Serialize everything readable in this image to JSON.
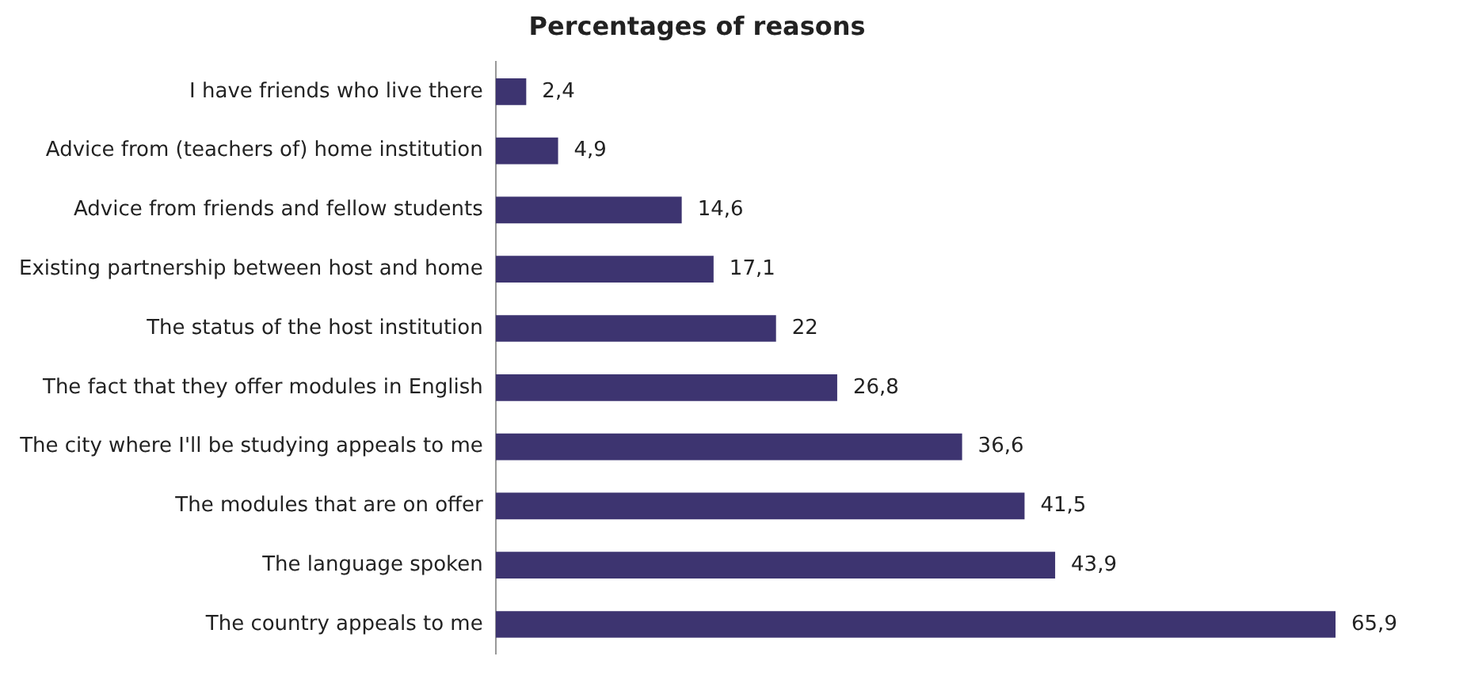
{
  "chart_data": {
    "type": "bar",
    "orientation": "horizontal",
    "title": "Percentages of reasons",
    "categories": [
      "I have friends who live there",
      "Advice from (teachers of) home institution",
      "Advice from friends and fellow students",
      "Existing partnership between host and home",
      "The status of the host institution",
      "The fact that they offer modules in English",
      "The city where I'll be studying appeals to me",
      "The modules that are on offer",
      "The language spoken",
      "The country appeals to me"
    ],
    "values": [
      2.4,
      4.9,
      14.6,
      17.1,
      22,
      26.8,
      36.6,
      41.5,
      43.9,
      65.9
    ],
    "value_labels": [
      "2,4",
      "4,9",
      "14,6",
      "17,1",
      "22",
      "26,8",
      "36,6",
      "41,5",
      "43,9",
      "65,9"
    ],
    "color": "#3d3470",
    "grid": false,
    "legend": false
  }
}
